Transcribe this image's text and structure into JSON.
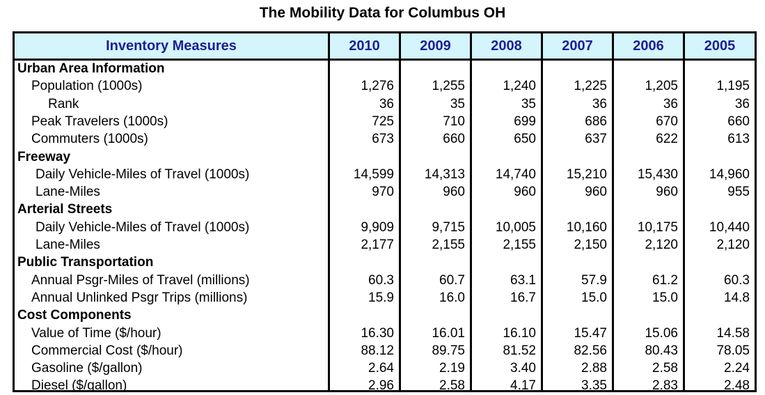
{
  "title": "The Mobility Data for Columbus OH",
  "header": {
    "measure_label": "Inventory Measures",
    "years": [
      "2010",
      "2009",
      "2008",
      "2007",
      "2006",
      "2005"
    ]
  },
  "rows": [
    {
      "type": "section",
      "label": "Urban Area Information"
    },
    {
      "type": "data",
      "indent": 1,
      "label": "Population (1000s)",
      "values": [
        "1,276",
        "1,255",
        "1,240",
        "1,225",
        "1,205",
        "1,195"
      ]
    },
    {
      "type": "data",
      "indent": 2,
      "label": "Rank",
      "values": [
        "36",
        "35",
        "35",
        "36",
        "36",
        "36"
      ]
    },
    {
      "type": "data",
      "indent": 1,
      "label": "Peak Travelers (1000s)",
      "values": [
        "725",
        "710",
        "699",
        "686",
        "670",
        "660"
      ]
    },
    {
      "type": "data",
      "indent": 1,
      "label": "Commuters (1000s)",
      "values": [
        "673",
        "660",
        "650",
        "637",
        "622",
        "613"
      ]
    },
    {
      "type": "section",
      "label": "Freeway"
    },
    {
      "type": "data",
      "indent": 3,
      "label": "Daily Vehicle-Miles of Travel (1000s)",
      "values": [
        "14,599",
        "14,313",
        "14,740",
        "15,210",
        "15,430",
        "14,960"
      ]
    },
    {
      "type": "data",
      "indent": 3,
      "label": "Lane-Miles",
      "values": [
        "970",
        "960",
        "960",
        "960",
        "960",
        "955"
      ]
    },
    {
      "type": "section",
      "label": "Arterial Streets"
    },
    {
      "type": "data",
      "indent": 3,
      "label": "Daily Vehicle-Miles of Travel (1000s)",
      "values": [
        "9,909",
        "9,715",
        "10,005",
        "10,160",
        "10,175",
        "10,440"
      ]
    },
    {
      "type": "data",
      "indent": 3,
      "label": "Lane-Miles",
      "values": [
        "2,177",
        "2,155",
        "2,155",
        "2,150",
        "2,120",
        "2,120"
      ]
    },
    {
      "type": "section",
      "label": "Public Transportation"
    },
    {
      "type": "data",
      "indent": 1,
      "label": "Annual Psgr-Miles of Travel (millions)",
      "values": [
        "60.3",
        "60.7",
        "63.1",
        "57.9",
        "61.2",
        "60.3"
      ]
    },
    {
      "type": "data",
      "indent": 1,
      "label": "Annual Unlinked Psgr Trips (millions)",
      "values": [
        "15.9",
        "16.0",
        "16.7",
        "15.0",
        "15.0",
        "14.8"
      ]
    },
    {
      "type": "section",
      "label": "Cost Components"
    },
    {
      "type": "data",
      "indent": 1,
      "label": "Value of Time ($/hour)",
      "values": [
        "16.30",
        "16.01",
        "16.10",
        "15.47",
        "15.06",
        "14.58"
      ]
    },
    {
      "type": "data",
      "indent": 1,
      "label": "Commercial Cost ($/hour)",
      "values": [
        "88.12",
        "89.75",
        "81.52",
        "82.56",
        "80.43",
        "78.05"
      ]
    },
    {
      "type": "data",
      "indent": 1,
      "label": "Gasoline ($/gallon)",
      "values": [
        "2.64",
        "2.19",
        "3.40",
        "2.88",
        "2.58",
        "2.24"
      ]
    },
    {
      "type": "data",
      "indent": 1,
      "label": "Diesel ($/gallon)",
      "values": [
        "2.96",
        "2.58",
        "4.17",
        "3.35",
        "2.83",
        "2.48"
      ]
    }
  ]
}
